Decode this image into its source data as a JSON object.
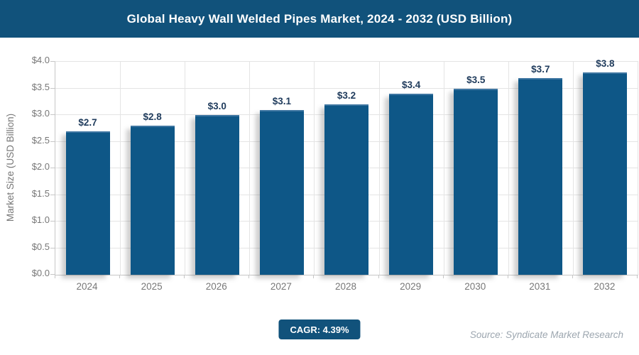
{
  "header": {
    "title": "Global Heavy Wall Welded Pipes Market, 2024 - 2032 (USD Billion)"
  },
  "chart_data": {
    "type": "bar",
    "title": "Global Heavy Wall Welded Pipes Market, 2024 - 2032 (USD Billion)",
    "categories": [
      "2024",
      "2025",
      "2026",
      "2027",
      "2028",
      "2029",
      "2030",
      "2031",
      "2032"
    ],
    "values": [
      2.7,
      2.8,
      3.0,
      3.1,
      3.2,
      3.4,
      3.5,
      3.7,
      3.8
    ],
    "value_labels": [
      "$2.7",
      "$2.8",
      "$3.0",
      "$3.1",
      "$3.2",
      "$3.4",
      "$3.5",
      "$3.7",
      "$3.8"
    ],
    "xlabel": "",
    "ylabel": "Market Size (USD Billion)",
    "ylim": [
      0,
      4.0
    ],
    "ytick_step": 0.5,
    "ytick_labels": [
      "$0.0",
      "$0.5",
      "$1.0",
      "$1.5",
      "$2.0",
      "$2.5",
      "$3.0",
      "$3.5",
      "$4.0"
    ],
    "grid": true,
    "legend": false,
    "bar_count": 9
  },
  "footer": {
    "cagr_label": "CAGR: 4.39%",
    "source": "Source: Syndicate Market Research"
  },
  "colors": {
    "header_bg": "#11527B",
    "bar_fill": "#0E5787",
    "bar_top_edge": "#3D75A1",
    "value_label": "#1F3B5C",
    "axis_text": "#777777",
    "gridline": "#E4E4E4",
    "axis_line": "#C6C6C6",
    "badge_bg": "#11527B",
    "badge_text": "#FFFFFF",
    "source_text": "#9CA6AF",
    "title_text": "#FFFFFF",
    "background": "#FFFFFF"
  }
}
